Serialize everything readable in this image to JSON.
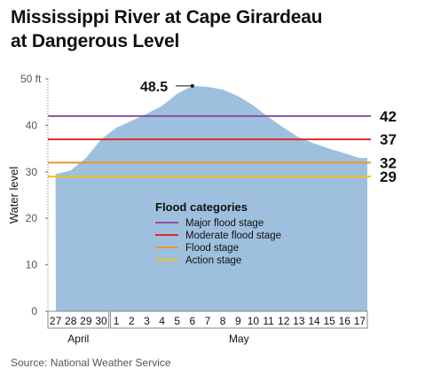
{
  "title_line1": "Mississippi River at Cape Girardeau",
  "title_line2": "at Dangerous Level",
  "source": "Source: National Weather Service",
  "colors": {
    "area": "#9ec0de",
    "major": "#8a4fa6",
    "moderate": "#dc2a2a",
    "flood": "#e8962c",
    "action": "#f2c318"
  },
  "chart_data": {
    "type": "area",
    "title": "Mississippi River at Cape Girardeau at Dangerous Level",
    "xlabel": "",
    "ylabel": "Water level",
    "ylim": [
      0,
      50
    ],
    "yticks": [
      "0",
      "10",
      "20",
      "30",
      "40",
      "50 ft"
    ],
    "grid": false,
    "x": [
      "27",
      "28",
      "29",
      "30",
      "1",
      "2",
      "3",
      "4",
      "5",
      "6",
      "7",
      "8",
      "9",
      "10",
      "11",
      "12",
      "13",
      "14",
      "15",
      "16",
      "17"
    ],
    "month_groups": [
      {
        "label": "April",
        "days": [
          "27",
          "28",
          "29",
          "30"
        ]
      },
      {
        "label": "May",
        "days": [
          "1",
          "2",
          "3",
          "4",
          "5",
          "6",
          "7",
          "8",
          "9",
          "10",
          "11",
          "12",
          "13",
          "14",
          "15",
          "16",
          "17"
        ]
      }
    ],
    "values": [
      29.5,
      30.3,
      33,
      37,
      39.5,
      41,
      42.5,
      44.2,
      46.8,
      48.5,
      48.3,
      47.7,
      46.3,
      44.3,
      41.8,
      39.5,
      37.4,
      36.1,
      35,
      34,
      33
    ],
    "peak_label": "48.5",
    "thresholds": [
      {
        "name": "Major flood stage",
        "value": 42,
        "label": "42",
        "color": "#8a4fa6"
      },
      {
        "name": "Moderate flood stage",
        "value": 37,
        "label": "37",
        "color": "#dc2a2a"
      },
      {
        "name": "Flood stage",
        "value": 32,
        "label": "32",
        "color": "#e8962c"
      },
      {
        "name": "Action stage",
        "value": 29,
        "label": "29",
        "color": "#f2c318"
      }
    ],
    "legend": {
      "title": "Flood categories",
      "position": "center",
      "items": [
        "Major flood stage",
        "Moderate flood stage",
        "Flood stage",
        "Action stage"
      ]
    }
  }
}
